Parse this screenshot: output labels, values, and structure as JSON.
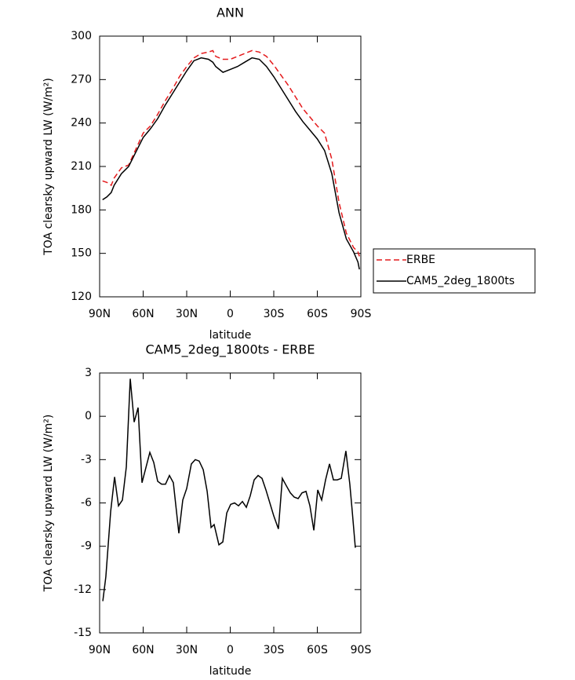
{
  "chart_data": [
    {
      "type": "line",
      "title": "ANN",
      "xlabel": "latitude",
      "ylabel": "TOA clearsky upward LW (W/m²)",
      "xlim": [
        90,
        -90
      ],
      "ylim": [
        120,
        300
      ],
      "xticks": [
        {
          "value": 90,
          "label": "90N"
        },
        {
          "value": 60,
          "label": "60N"
        },
        {
          "value": 30,
          "label": "30N"
        },
        0,
        {
          "value": -30,
          "label": "30S"
        },
        {
          "value": -60,
          "label": "60S"
        },
        {
          "value": -90,
          "label": "90S"
        }
      ],
      "yticks": [
        120,
        150,
        180,
        210,
        240,
        270,
        300
      ],
      "legend": "right",
      "x": [
        88,
        85,
        82,
        80,
        75,
        70,
        65,
        60,
        55,
        50,
        45,
        40,
        35,
        30,
        25,
        20,
        15,
        12,
        10,
        5,
        0,
        -5,
        -10,
        -15,
        -20,
        -25,
        -30,
        -35,
        -40,
        -45,
        -50,
        -55,
        -60,
        -65,
        -70,
        -75,
        -80,
        -85,
        -88,
        -89
      ],
      "series": [
        {
          "name": "ERBE",
          "color": "#e41a1c",
          "line_style": "dashed",
          "values": [
            200,
            199,
            197,
            202,
            209,
            211,
            222,
            233,
            238,
            246,
            255,
            263,
            272,
            279,
            285,
            288,
            289,
            290,
            286,
            284,
            284,
            286,
            288,
            290,
            289,
            286,
            280,
            273,
            266,
            258,
            250,
            244,
            238,
            233,
            215,
            185,
            164,
            154,
            151,
            148
          ]
        },
        {
          "name": "CAM5_2deg_1800ts",
          "color": "#000000",
          "line_style": "solid",
          "values": [
            187,
            189,
            192,
            197,
            205,
            210,
            220,
            230,
            236,
            243,
            252,
            260,
            268,
            276,
            283,
            285,
            284,
            282,
            279,
            275,
            277,
            279,
            282,
            285,
            284,
            279,
            272,
            264,
            256,
            248,
            241,
            235,
            229,
            221,
            205,
            178,
            160,
            151,
            144,
            139
          ]
        }
      ]
    },
    {
      "type": "line",
      "title": "CAM5_2deg_1800ts - ERBE",
      "xlabel": "latitude",
      "ylabel": "TOA clearsky upward LW (W/m²)",
      "xlim": [
        90,
        -90
      ],
      "ylim": [
        -15,
        3
      ],
      "xticks": [
        {
          "value": 90,
          "label": "90N"
        },
        {
          "value": 60,
          "label": "60N"
        },
        {
          "value": 30,
          "label": "30N"
        },
        0,
        {
          "value": -30,
          "label": "30S"
        },
        {
          "value": -60,
          "label": "60S"
        },
        {
          "value": -90,
          "label": "90S"
        }
      ],
      "yticks": [
        -15,
        -12,
        -9,
        -6,
        -3,
        0,
        3
      ],
      "x": [
        87.8,
        85.7,
        82.4,
        79.7,
        77.0,
        74.3,
        71.6,
        68.9,
        66.2,
        63.5,
        60.8,
        55.4,
        52.7,
        50.0,
        47.3,
        44.6,
        41.9,
        39.2,
        35.4,
        32.7,
        30.0,
        26.8,
        24.1,
        21.4,
        18.6,
        15.9,
        13.2,
        11.1,
        7.8,
        5.1,
        2.4,
        -0.3,
        -3.0,
        -5.7,
        -8.4,
        -11.1,
        -13.8,
        -16.5,
        -19.2,
        -21.9,
        -24.6,
        -27.3,
        -30.0,
        -33.2,
        -35.9,
        -38.6,
        -41.4,
        -44.1,
        -46.8,
        -49.5,
        -52.2,
        -54.9,
        -57.6,
        -60.3,
        -63.0,
        -65.7,
        -68.4,
        -71.1,
        -73.8,
        -76.5,
        -79.7,
        -82.4,
        -84.0,
        -86.2
      ],
      "series": [
        {
          "color": "#000000",
          "line_style": "solid",
          "values": [
            -12.8,
            -11.1,
            -6.6,
            -4.2,
            -6.2,
            -5.8,
            -3.5,
            2.6,
            -0.4,
            0.6,
            -4.6,
            -2.5,
            -3.2,
            -4.5,
            -4.7,
            -4.7,
            -4.1,
            -4.6,
            -8.1,
            -5.8,
            -5.0,
            -3.3,
            -3.0,
            -3.1,
            -3.7,
            -5.2,
            -7.7,
            -7.5,
            -8.9,
            -8.7,
            -6.7,
            -6.1,
            -6.0,
            -6.2,
            -5.9,
            -6.3,
            -5.5,
            -4.4,
            -4.1,
            -4.3,
            -5.1,
            -6.0,
            -6.9,
            -7.8,
            -4.3,
            -4.8,
            -5.3,
            -5.6,
            -5.7,
            -5.3,
            -5.2,
            -6.2,
            -7.9,
            -5.1,
            -5.8,
            -4.4,
            -3.3,
            -4.4,
            -4.4,
            -4.3,
            -2.4,
            -4.7,
            -6.5,
            -9.1
          ]
        }
      ]
    }
  ]
}
